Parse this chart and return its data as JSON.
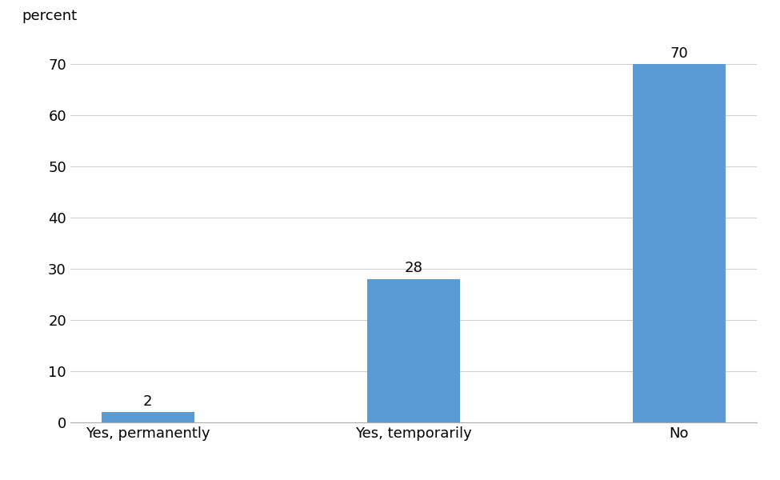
{
  "categories": [
    "Yes, permanently",
    "Yes, temporarily",
    "No"
  ],
  "values": [
    2,
    28,
    70
  ],
  "bar_color": "#5b9bd5",
  "ylabel": "percent",
  "ylim": [
    0,
    75
  ],
  "yticks": [
    0,
    10,
    20,
    30,
    40,
    50,
    60,
    70
  ],
  "bar_width": 0.35,
  "tick_fontsize": 13,
  "label_fontsize": 13,
  "ylabel_fontsize": 13,
  "value_label_fontsize": 13,
  "background_color": "#ffffff",
  "grid_color": "#d0d0d0"
}
